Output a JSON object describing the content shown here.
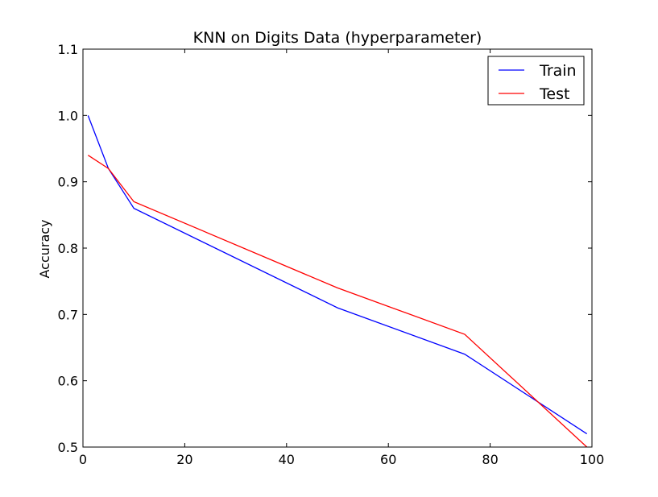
{
  "chart_data": {
    "type": "line",
    "title": "KNN on Digits Data (hyperparameter)",
    "xlabel": "",
    "ylabel": "Accuracy",
    "xlim": [
      0,
      100
    ],
    "ylim": [
      0.5,
      1.1
    ],
    "xticks": [
      0,
      20,
      40,
      60,
      80,
      100
    ],
    "xtick_labels": [
      "0",
      "20",
      "40",
      "60",
      "80",
      "100"
    ],
    "yticks": [
      0.5,
      0.6,
      0.7,
      0.8,
      0.9,
      1.0,
      1.1
    ],
    "ytick_labels": [
      "0.5",
      "0.6",
      "0.7",
      "0.8",
      "0.9",
      "1.0",
      "1.1"
    ],
    "grid": false,
    "legend_position": "top-right",
    "series": [
      {
        "name": "Train",
        "color": "#0000ff",
        "x": [
          1,
          5,
          10,
          50,
          75,
          99
        ],
        "y": [
          1.0,
          0.92,
          0.86,
          0.71,
          0.64,
          0.52
        ]
      },
      {
        "name": "Test",
        "color": "#ff0000",
        "x": [
          1,
          5,
          10,
          50,
          75,
          99
        ],
        "y": [
          0.94,
          0.92,
          0.87,
          0.74,
          0.67,
          0.5
        ]
      }
    ]
  }
}
